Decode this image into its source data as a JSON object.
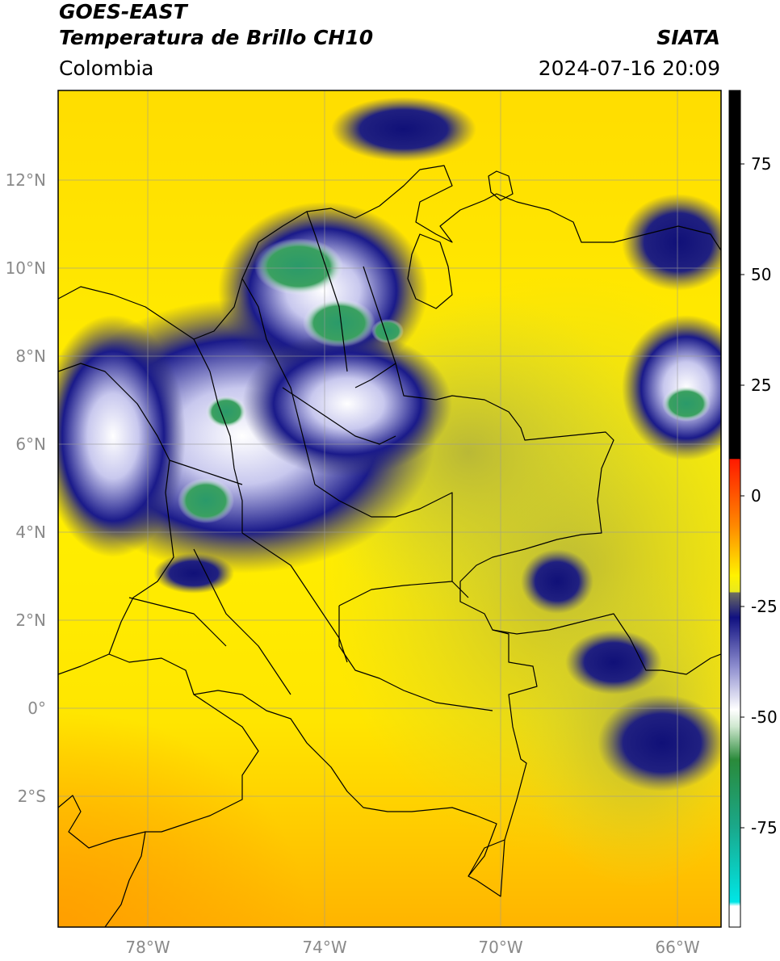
{
  "header": {
    "title_line1": "GOES-EAST",
    "title_line2": "Temperatura de Brillo CH10",
    "organization": "SIATA",
    "region": "Colombia",
    "datetime": "2024-07-16 20:09"
  },
  "map": {
    "lat_labels": [
      "12°N",
      "10°N",
      "8°N",
      "6°N",
      "4°N",
      "2°N",
      "0°",
      "2°S"
    ],
    "lon_labels": [
      "78°W",
      "74°W",
      "70°W",
      "66°W"
    ]
  },
  "colorbar": {
    "tick_labels": [
      "75",
      "50",
      "25",
      "0",
      "-25",
      "-50",
      "-75"
    ],
    "colors": {
      "black": "#000000",
      "red": "#ff1a00",
      "orange": "#ff9a00",
      "yellow": "#fff200",
      "olive": "#9a9a3a",
      "navy": "#101080",
      "white": "#ffffff",
      "green": "#2a8a3a",
      "teal": "#1aa88a",
      "cyan": "#00e6e6"
    }
  }
}
